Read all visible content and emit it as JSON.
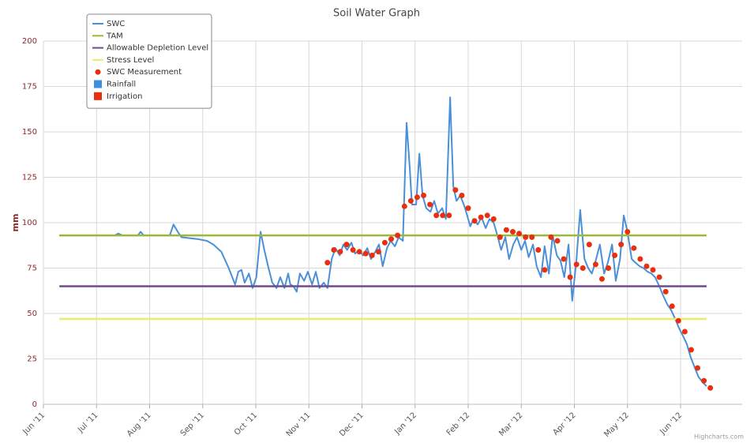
{
  "chart_data": {
    "type": "line",
    "title": "Soil Water Graph",
    "ylabel": "mm",
    "credit": "Highcharts.com",
    "ylim": [
      0,
      200
    ],
    "yticks": [
      0,
      25,
      50,
      75,
      100,
      125,
      150,
      175,
      200
    ],
    "xlim": [
      0,
      13.16
    ],
    "xticks": [
      {
        "value": 0,
        "label": "Jun '11"
      },
      {
        "value": 1,
        "label": "Jul '11"
      },
      {
        "value": 2,
        "label": "Aug '11"
      },
      {
        "value": 3,
        "label": "Sep '11"
      },
      {
        "value": 4,
        "label": "Oct '11"
      },
      {
        "value": 5,
        "label": "Nov '11"
      },
      {
        "value": 6,
        "label": "Dec '11"
      },
      {
        "value": 7,
        "label": "Jan '12"
      },
      {
        "value": 8,
        "label": "Feb '12"
      },
      {
        "value": 9,
        "label": "Mar '12"
      },
      {
        "value": 10,
        "label": "Apr '12"
      },
      {
        "value": 11,
        "label": "May '12"
      },
      {
        "value": 12,
        "label": "Jun '12"
      }
    ],
    "grid": true,
    "legend": "top-left",
    "series": [
      {
        "name": "SWC",
        "type": "line",
        "color": "#4a90d9",
        "x": [
          0.3,
          1.34,
          1.41,
          1.49,
          1.78,
          1.83,
          1.89,
          2.38,
          2.45,
          2.53,
          2.6,
          2.9,
          3.08,
          3.2,
          3.35,
          3.49,
          3.61,
          3.67,
          3.73,
          3.79,
          3.87,
          3.94,
          4.01,
          4.09,
          4.16,
          4.24,
          4.31,
          4.39,
          4.46,
          4.54,
          4.61,
          4.65,
          4.71,
          4.77,
          4.83,
          4.91,
          4.98,
          5.06,
          5.13,
          5.2,
          5.28,
          5.35,
          5.43,
          5.5,
          5.58,
          5.65,
          5.72,
          5.8,
          5.87,
          5.95,
          6.02,
          6.1,
          6.17,
          6.25,
          6.32,
          6.39,
          6.47,
          6.54,
          6.62,
          6.69,
          6.77,
          6.84,
          6.9,
          6.94,
          7.02,
          7.08,
          7.14,
          7.21,
          7.29,
          7.36,
          7.43,
          7.51,
          7.58,
          7.66,
          7.72,
          7.78,
          7.85,
          7.93,
          7.99,
          8.04,
          8.1,
          8.18,
          8.25,
          8.33,
          8.4,
          8.48,
          8.55,
          8.62,
          8.7,
          8.77,
          8.85,
          8.92,
          9.0,
          9.07,
          9.14,
          9.22,
          9.29,
          9.37,
          9.44,
          9.52,
          9.59,
          9.67,
          9.74,
          9.81,
          9.89,
          9.96,
          10.04,
          10.11,
          10.19,
          10.26,
          10.33,
          10.41,
          10.48,
          10.56,
          10.63,
          10.71,
          10.78,
          10.86,
          10.93,
          11.0,
          11.08,
          11.15,
          11.23,
          11.3,
          11.38,
          11.45,
          11.52,
          11.6,
          11.67,
          11.75,
          11.82,
          11.9,
          11.97,
          12.04,
          12.12,
          12.19,
          12.27,
          12.34,
          12.42,
          12.49
        ],
        "values": [
          93,
          93,
          94,
          93,
          93,
          95,
          93,
          93,
          99,
          95,
          92,
          91,
          90,
          88,
          84,
          75,
          66,
          73,
          74,
          67,
          72,
          64,
          70,
          95,
          85,
          75,
          67,
          64,
          70,
          64,
          72,
          66,
          65,
          62,
          72,
          68,
          73,
          66,
          73,
          64,
          67,
          64,
          80,
          86,
          82,
          88,
          85,
          89,
          83,
          85,
          82,
          86,
          80,
          84,
          88,
          76,
          86,
          90,
          87,
          92,
          90,
          155,
          130,
          110,
          110,
          138,
          115,
          108,
          106,
          112,
          105,
          108,
          102,
          169,
          120,
          112,
          115,
          109,
          103,
          98,
          102,
          99,
          103,
          97,
          102,
          100,
          93,
          85,
          92,
          80,
          88,
          92,
          85,
          90,
          81,
          88,
          76,
          70,
          87,
          72,
          93,
          82,
          79,
          70,
          88,
          57,
          80,
          107,
          80,
          75,
          72,
          80,
          88,
          72,
          78,
          88,
          68,
          80,
          104,
          95,
          80,
          78,
          76,
          75,
          73,
          72,
          70,
          65,
          60,
          55,
          52,
          47,
          42,
          38,
          33,
          26,
          20,
          15,
          12,
          10
        ]
      },
      {
        "name": "TAM",
        "type": "line",
        "color": "#9cb83a",
        "x": [
          0.3,
          12.49
        ],
        "values": [
          93,
          93
        ]
      },
      {
        "name": "Allowable Depletion Level",
        "type": "line",
        "color": "#6e4c8c",
        "x": [
          0.3,
          12.49
        ],
        "values": [
          65,
          65
        ]
      },
      {
        "name": "Stress Level",
        "type": "line",
        "color": "#ecec6a",
        "x": [
          0.3,
          12.49
        ],
        "values": [
          47,
          47
        ]
      },
      {
        "name": "SWC Measurement",
        "type": "scatter",
        "color": "#e8300e",
        "x": [
          5.35,
          5.47,
          5.59,
          5.71,
          5.83,
          5.95,
          6.07,
          6.19,
          6.31,
          6.43,
          6.55,
          6.67,
          6.8,
          6.92,
          7.04,
          7.16,
          7.28,
          7.4,
          7.52,
          7.64,
          7.76,
          7.88,
          8.0,
          8.12,
          8.24,
          8.36,
          8.48,
          8.6,
          8.72,
          8.84,
          8.96,
          9.08,
          9.2,
          9.32,
          9.44,
          9.56,
          9.68,
          9.8,
          9.92,
          10.04,
          10.16,
          10.28,
          10.4,
          10.52,
          10.64,
          10.76,
          10.88,
          11.0,
          11.12,
          11.24,
          11.36,
          11.48,
          11.6,
          11.72,
          11.84,
          11.96,
          12.08,
          12.2,
          12.32,
          12.44,
          12.56
        ],
        "values": [
          78,
          85,
          84,
          88,
          85,
          84,
          83,
          82,
          84,
          89,
          91,
          93,
          109,
          112,
          114,
          115,
          110,
          104,
          104,
          104,
          118,
          115,
          108,
          101,
          103,
          104,
          102,
          92,
          96,
          95,
          94,
          92,
          92,
          85,
          74,
          92,
          90,
          80,
          70,
          77,
          75,
          88,
          77,
          69,
          75,
          82,
          88,
          95,
          86,
          80,
          76,
          74,
          70,
          62,
          54,
          46,
          40,
          30,
          20,
          13,
          9
        ]
      },
      {
        "name": "Rainfall",
        "type": "column",
        "color": "#3d8fe0",
        "x": [],
        "values": []
      },
      {
        "name": "Irrigation",
        "type": "column",
        "color": "#e8300e",
        "x": [],
        "values": []
      }
    ]
  }
}
